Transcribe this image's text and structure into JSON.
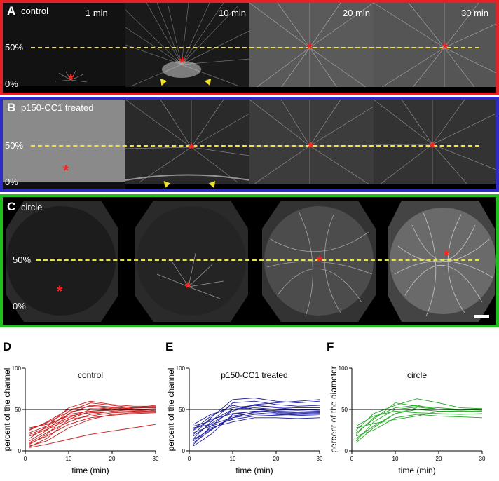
{
  "panels": [
    {
      "letter": "A",
      "title": "control",
      "border_color": "#e52224",
      "time_labels": [
        "1 min",
        "10 min",
        "20 min",
        "30 min"
      ],
      "pct_top": "50%",
      "pct_bottom": "0%"
    },
    {
      "letter": "B",
      "title": "p150-CC1 treated",
      "border_color": "#2d2cc8",
      "pct_top": "50%",
      "pct_bottom": "0%"
    },
    {
      "letter": "C",
      "title": "circle",
      "border_color": "#1fc21c",
      "pct_top": "50%",
      "pct_bottom": "0%"
    }
  ],
  "colors": {
    "marker": "#ff2020",
    "guide_line": "#f2e33c"
  },
  "chart_data": [
    {
      "letter": "D",
      "type": "line",
      "title": "control",
      "xlabel": "time (min)",
      "ylabel": "percent of the channel",
      "xlim": [
        0,
        30
      ],
      "ylim": [
        0,
        100
      ],
      "xticks": [
        "0",
        "10",
        "20",
        "30"
      ],
      "yticks": [
        "0",
        "50",
        "100"
      ],
      "reference_line": 50,
      "color": "#cc1a1a",
      "series": [
        {
          "x": [
            1,
            5,
            10,
            15,
            20,
            25,
            30
          ],
          "y": [
            5,
            15,
            38,
            48,
            50,
            52,
            52
          ]
        },
        {
          "x": [
            1,
            5,
            10,
            15,
            20,
            25,
            30
          ],
          "y": [
            8,
            20,
            45,
            55,
            53,
            51,
            50
          ]
        },
        {
          "x": [
            1,
            5,
            10,
            15,
            20,
            25,
            30
          ],
          "y": [
            12,
            25,
            48,
            58,
            55,
            52,
            53
          ]
        },
        {
          "x": [
            1,
            5,
            10,
            15,
            20,
            25,
            30
          ],
          "y": [
            15,
            30,
            52,
            60,
            56,
            54,
            54
          ]
        },
        {
          "x": [
            1,
            5,
            10,
            15,
            20,
            25,
            30
          ],
          "y": [
            20,
            28,
            40,
            50,
            52,
            50,
            50
          ]
        },
        {
          "x": [
            1,
            5,
            10,
            15,
            20,
            25,
            30
          ],
          "y": [
            25,
            35,
            50,
            54,
            51,
            49,
            48
          ]
        },
        {
          "x": [
            1,
            5,
            10,
            15,
            20,
            25,
            30
          ],
          "y": [
            28,
            32,
            42,
            46,
            47,
            48,
            47
          ]
        },
        {
          "x": [
            1,
            5,
            10,
            15,
            20,
            25,
            30
          ],
          "y": [
            10,
            22,
            35,
            44,
            48,
            50,
            51
          ]
        },
        {
          "x": [
            1,
            5,
            10,
            15,
            20,
            25,
            30
          ],
          "y": [
            18,
            26,
            38,
            42,
            46,
            47,
            49
          ]
        },
        {
          "x": [
            1,
            5,
            10,
            15,
            20,
            25,
            30
          ],
          "y": [
            6,
            12,
            28,
            38,
            44,
            46,
            47
          ]
        },
        {
          "x": [
            1,
            5,
            10,
            15,
            20,
            25,
            30
          ],
          "y": [
            22,
            30,
            44,
            48,
            49,
            52,
            55
          ]
        },
        {
          "x": [
            1,
            5,
            10,
            15,
            20,
            25,
            30
          ],
          "y": [
            9,
            18,
            32,
            40,
            43,
            45,
            46
          ]
        },
        {
          "x": [
            1,
            5,
            10,
            15,
            20,
            25,
            30
          ],
          "y": [
            4,
            8,
            14,
            20,
            24,
            28,
            32
          ]
        },
        {
          "x": [
            1,
            5,
            10,
            15,
            20,
            25,
            30
          ],
          "y": [
            26,
            34,
            47,
            51,
            50,
            49,
            50
          ]
        }
      ]
    },
    {
      "letter": "E",
      "type": "line",
      "title": "p150-CC1 treated",
      "xlabel": "time (min)",
      "ylabel": "percent of the channel",
      "xlim": [
        0,
        30
      ],
      "ylim": [
        0,
        100
      ],
      "xticks": [
        "0",
        "10",
        "20",
        "30"
      ],
      "yticks": [
        "0",
        "50",
        "100"
      ],
      "reference_line": 50,
      "color": "#1f1f9e",
      "series": [
        {
          "x": [
            1,
            5,
            10,
            15,
            20,
            25,
            30
          ],
          "y": [
            8,
            30,
            50,
            55,
            52,
            50,
            50
          ]
        },
        {
          "x": [
            1,
            5,
            10,
            15,
            20,
            25,
            30
          ],
          "y": [
            15,
            35,
            58,
            60,
            56,
            54,
            55
          ]
        },
        {
          "x": [
            1,
            5,
            10,
            15,
            20,
            25,
            30
          ],
          "y": [
            20,
            40,
            62,
            64,
            60,
            58,
            60
          ]
        },
        {
          "x": [
            1,
            5,
            10,
            15,
            20,
            25,
            30
          ],
          "y": [
            25,
            38,
            45,
            48,
            47,
            46,
            46
          ]
        },
        {
          "x": [
            1,
            5,
            10,
            15,
            20,
            25,
            30
          ],
          "y": [
            28,
            32,
            40,
            44,
            45,
            44,
            44
          ]
        },
        {
          "x": [
            1,
            5,
            10,
            15,
            20,
            25,
            30
          ],
          "y": [
            10,
            25,
            42,
            46,
            44,
            43,
            42
          ]
        },
        {
          "x": [
            1,
            5,
            10,
            15,
            20,
            25,
            30
          ],
          "y": [
            30,
            36,
            50,
            52,
            50,
            49,
            50
          ]
        },
        {
          "x": [
            1,
            5,
            10,
            15,
            20,
            25,
            30
          ],
          "y": [
            12,
            28,
            35,
            40,
            40,
            39,
            40
          ]
        },
        {
          "x": [
            1,
            5,
            10,
            15,
            20,
            25,
            30
          ],
          "y": [
            18,
            33,
            48,
            56,
            58,
            60,
            62
          ]
        },
        {
          "x": [
            1,
            5,
            10,
            15,
            20,
            25,
            30
          ],
          "y": [
            22,
            30,
            38,
            42,
            43,
            44,
            45
          ]
        },
        {
          "x": [
            1,
            5,
            10,
            15,
            20,
            25,
            30
          ],
          "y": [
            26,
            42,
            55,
            50,
            48,
            47,
            48
          ]
        },
        {
          "x": [
            1,
            5,
            10,
            15,
            20,
            25,
            30
          ],
          "y": [
            6,
            20,
            44,
            48,
            46,
            45,
            46
          ]
        },
        {
          "x": [
            1,
            5,
            10,
            15,
            20,
            25,
            30
          ],
          "y": [
            32,
            44,
            52,
            55,
            53,
            52,
            52
          ]
        },
        {
          "x": [
            1,
            5,
            10,
            15,
            20,
            25,
            30
          ],
          "y": [
            14,
            26,
            40,
            47,
            49,
            50,
            49
          ]
        }
      ]
    },
    {
      "letter": "F",
      "type": "line",
      "title": "circle",
      "xlabel": "time (min)",
      "ylabel": "percent of the diameter",
      "xlim": [
        0,
        30
      ],
      "ylim": [
        0,
        100
      ],
      "xticks": [
        "0",
        "10",
        "20",
        "30"
      ],
      "yticks": [
        "0",
        "50",
        "100"
      ],
      "reference_line": 50,
      "color": "#25a825",
      "series": [
        {
          "x": [
            1,
            5,
            10,
            15,
            20,
            25,
            30
          ],
          "y": [
            15,
            30,
            45,
            50,
            48,
            48,
            48
          ]
        },
        {
          "x": [
            1,
            5,
            10,
            15,
            20,
            25,
            30
          ],
          "y": [
            20,
            40,
            52,
            55,
            50,
            50,
            51
          ]
        },
        {
          "x": [
            1,
            5,
            10,
            15,
            20,
            25,
            30
          ],
          "y": [
            25,
            45,
            55,
            63,
            58,
            52,
            51
          ]
        },
        {
          "x": [
            1,
            5,
            10,
            15,
            20,
            25,
            30
          ],
          "y": [
            12,
            35,
            50,
            53,
            50,
            49,
            50
          ]
        },
        {
          "x": [
            1,
            5,
            10,
            15,
            20,
            25,
            30
          ],
          "y": [
            30,
            42,
            48,
            46,
            45,
            44,
            45
          ]
        },
        {
          "x": [
            1,
            5,
            10,
            15,
            20,
            25,
            30
          ],
          "y": [
            18,
            25,
            40,
            44,
            42,
            41,
            40
          ]
        },
        {
          "x": [
            1,
            5,
            10,
            15,
            20,
            25,
            30
          ],
          "y": [
            22,
            38,
            58,
            54,
            52,
            50,
            49
          ]
        },
        {
          "x": [
            1,
            5,
            10,
            15
          ],
          "y": [
            10,
            28,
            45,
            52
          ]
        },
        {
          "x": [
            1,
            5,
            10,
            15,
            20,
            25,
            30
          ],
          "y": [
            28,
            33,
            38,
            42,
            48,
            47,
            47
          ]
        }
      ]
    }
  ]
}
